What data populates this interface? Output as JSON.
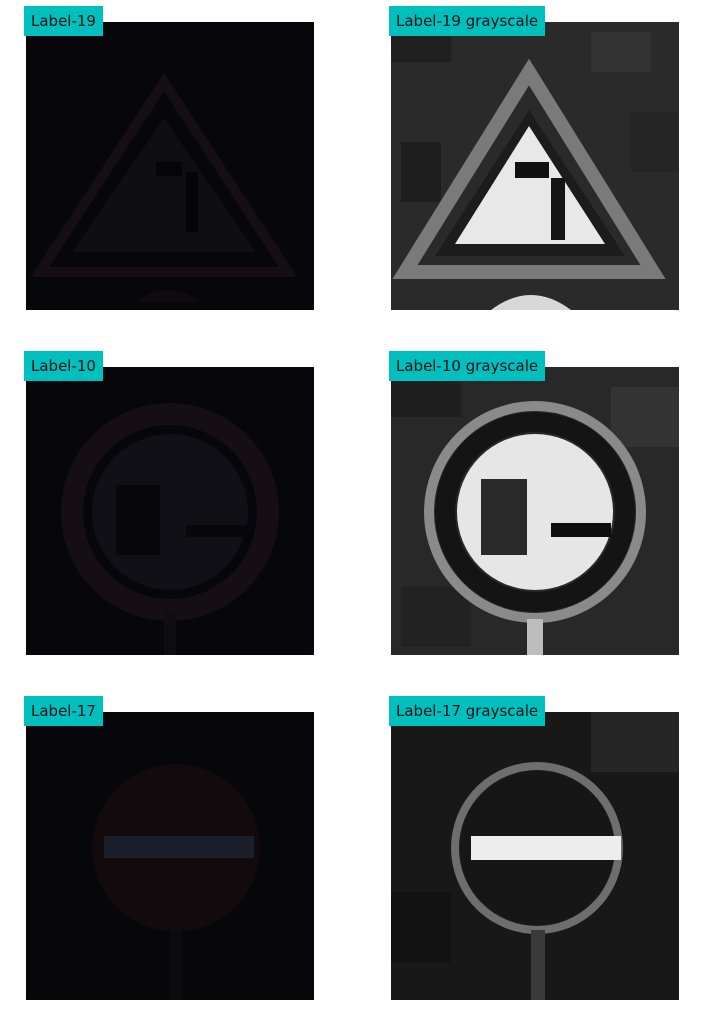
{
  "colors": {
    "label_bg": "#00bfbf",
    "page_bg": "#ffffff"
  },
  "panels": [
    {
      "label": "Label-19",
      "icon": "triangle-sign",
      "mode": "color"
    },
    {
      "label": "Label-19 grayscale",
      "icon": "triangle-sign",
      "mode": "grayscale"
    },
    {
      "label": "Label-10",
      "icon": "round-no-passing-sign",
      "mode": "color"
    },
    {
      "label": "Label-10 grayscale",
      "icon": "round-no-passing-sign",
      "mode": "grayscale"
    },
    {
      "label": "Label-17",
      "icon": "no-entry-sign",
      "mode": "color"
    },
    {
      "label": "Label-17 grayscale",
      "icon": "no-entry-sign",
      "mode": "grayscale"
    }
  ]
}
